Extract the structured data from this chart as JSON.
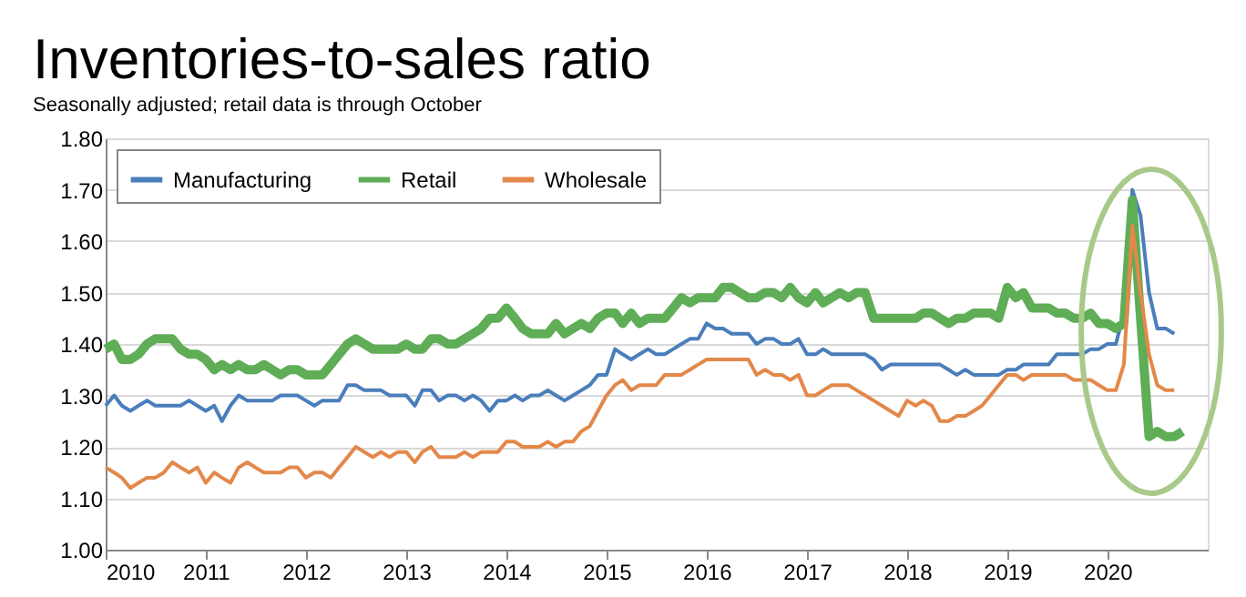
{
  "chart_data": {
    "type": "line",
    "title": "Inventories-to-sales ratio",
    "subtitle": "Seasonally adjusted; retail data is through October",
    "x": [
      "2010-01",
      "2010-02",
      "2010-03",
      "2010-04",
      "2010-05",
      "2010-06",
      "2010-07",
      "2010-08",
      "2010-09",
      "2010-10",
      "2010-11",
      "2010-12",
      "2011-01",
      "2011-02",
      "2011-03",
      "2011-04",
      "2011-05",
      "2011-06",
      "2011-07",
      "2011-08",
      "2011-09",
      "2011-10",
      "2011-11",
      "2011-12",
      "2012-01",
      "2012-02",
      "2012-03",
      "2012-04",
      "2012-05",
      "2012-06",
      "2012-07",
      "2012-08",
      "2012-09",
      "2012-10",
      "2012-11",
      "2012-12",
      "2013-01",
      "2013-02",
      "2013-03",
      "2013-04",
      "2013-05",
      "2013-06",
      "2013-07",
      "2013-08",
      "2013-09",
      "2013-10",
      "2013-11",
      "2013-12",
      "2014-01",
      "2014-02",
      "2014-03",
      "2014-04",
      "2014-05",
      "2014-06",
      "2014-07",
      "2014-08",
      "2014-09",
      "2014-10",
      "2014-11",
      "2014-12",
      "2015-01",
      "2015-02",
      "2015-03",
      "2015-04",
      "2015-05",
      "2015-06",
      "2015-07",
      "2015-08",
      "2015-09",
      "2015-10",
      "2015-11",
      "2015-12",
      "2016-01",
      "2016-02",
      "2016-03",
      "2016-04",
      "2016-05",
      "2016-06",
      "2016-07",
      "2016-08",
      "2016-09",
      "2016-10",
      "2016-11",
      "2016-12",
      "2017-01",
      "2017-02",
      "2017-03",
      "2017-04",
      "2017-05",
      "2017-06",
      "2017-07",
      "2017-08",
      "2017-09",
      "2017-10",
      "2017-11",
      "2017-12",
      "2018-01",
      "2018-02",
      "2018-03",
      "2018-04",
      "2018-05",
      "2018-06",
      "2018-07",
      "2018-08",
      "2018-09",
      "2018-10",
      "2018-11",
      "2018-12",
      "2019-01",
      "2019-02",
      "2019-03",
      "2019-04",
      "2019-05",
      "2019-06",
      "2019-07",
      "2019-08",
      "2019-09",
      "2019-10",
      "2019-11",
      "2019-12",
      "2020-01",
      "2020-02",
      "2020-03",
      "2020-04",
      "2020-05",
      "2020-06",
      "2020-07",
      "2020-08",
      "2020-09",
      "2020-10"
    ],
    "series": [
      {
        "name": "Manufacturing",
        "color": "#4a7ebb",
        "values": [
          1.28,
          1.3,
          1.28,
          1.27,
          1.28,
          1.29,
          1.28,
          1.28,
          1.28,
          1.28,
          1.29,
          1.28,
          1.27,
          1.28,
          1.25,
          1.28,
          1.3,
          1.29,
          1.29,
          1.29,
          1.29,
          1.3,
          1.3,
          1.3,
          1.29,
          1.28,
          1.29,
          1.29,
          1.29,
          1.32,
          1.32,
          1.31,
          1.31,
          1.31,
          1.3,
          1.3,
          1.3,
          1.28,
          1.31,
          1.31,
          1.29,
          1.3,
          1.3,
          1.29,
          1.3,
          1.29,
          1.27,
          1.29,
          1.29,
          1.3,
          1.29,
          1.3,
          1.3,
          1.31,
          1.3,
          1.29,
          1.3,
          1.31,
          1.32,
          1.34,
          1.34,
          1.39,
          1.38,
          1.37,
          1.38,
          1.39,
          1.38,
          1.38,
          1.39,
          1.4,
          1.41,
          1.41,
          1.44,
          1.43,
          1.43,
          1.42,
          1.42,
          1.42,
          1.4,
          1.41,
          1.41,
          1.4,
          1.4,
          1.41,
          1.38,
          1.38,
          1.39,
          1.38,
          1.38,
          1.38,
          1.38,
          1.38,
          1.37,
          1.35,
          1.36,
          1.36,
          1.36,
          1.36,
          1.36,
          1.36,
          1.36,
          1.35,
          1.34,
          1.35,
          1.34,
          1.34,
          1.34,
          1.34,
          1.35,
          1.35,
          1.36,
          1.36,
          1.36,
          1.36,
          1.38,
          1.38,
          1.38,
          1.38,
          1.39,
          1.39,
          1.4,
          1.4,
          1.46,
          1.7,
          1.65,
          1.5,
          1.43,
          1.43,
          1.42,
          null
        ]
      },
      {
        "name": "Retail",
        "color": "#5fad56",
        "values": [
          1.39,
          1.4,
          1.37,
          1.37,
          1.38,
          1.4,
          1.41,
          1.41,
          1.41,
          1.39,
          1.38,
          1.38,
          1.37,
          1.35,
          1.36,
          1.35,
          1.36,
          1.35,
          1.35,
          1.36,
          1.35,
          1.34,
          1.35,
          1.35,
          1.34,
          1.34,
          1.34,
          1.36,
          1.38,
          1.4,
          1.41,
          1.4,
          1.39,
          1.39,
          1.39,
          1.39,
          1.4,
          1.39,
          1.39,
          1.41,
          1.41,
          1.4,
          1.4,
          1.41,
          1.42,
          1.43,
          1.45,
          1.45,
          1.47,
          1.45,
          1.43,
          1.42,
          1.42,
          1.42,
          1.44,
          1.42,
          1.43,
          1.44,
          1.43,
          1.45,
          1.46,
          1.46,
          1.44,
          1.46,
          1.44,
          1.45,
          1.45,
          1.45,
          1.47,
          1.49,
          1.48,
          1.49,
          1.49,
          1.49,
          1.51,
          1.51,
          1.5,
          1.49,
          1.49,
          1.5,
          1.5,
          1.49,
          1.51,
          1.49,
          1.48,
          1.5,
          1.48,
          1.49,
          1.5,
          1.49,
          1.5,
          1.5,
          1.45,
          1.45,
          1.45,
          1.45,
          1.45,
          1.45,
          1.46,
          1.46,
          1.45,
          1.44,
          1.45,
          1.45,
          1.46,
          1.46,
          1.46,
          1.45,
          1.51,
          1.49,
          1.5,
          1.47,
          1.47,
          1.47,
          1.46,
          1.46,
          1.45,
          1.45,
          1.46,
          1.44,
          1.44,
          1.43,
          1.44,
          1.68,
          1.45,
          1.22,
          1.23,
          1.22,
          1.22,
          1.23
        ]
      },
      {
        "name": "Wholesale",
        "color": "#e3884a",
        "values": [
          1.16,
          1.15,
          1.14,
          1.12,
          1.13,
          1.14,
          1.14,
          1.15,
          1.17,
          1.16,
          1.15,
          1.16,
          1.13,
          1.15,
          1.14,
          1.13,
          1.16,
          1.17,
          1.16,
          1.15,
          1.15,
          1.15,
          1.16,
          1.16,
          1.14,
          1.15,
          1.15,
          1.14,
          1.16,
          1.18,
          1.2,
          1.19,
          1.18,
          1.19,
          1.18,
          1.19,
          1.19,
          1.17,
          1.19,
          1.2,
          1.18,
          1.18,
          1.18,
          1.19,
          1.18,
          1.19,
          1.19,
          1.19,
          1.21,
          1.21,
          1.2,
          1.2,
          1.2,
          1.21,
          1.2,
          1.21,
          1.21,
          1.23,
          1.24,
          1.27,
          1.3,
          1.32,
          1.33,
          1.31,
          1.32,
          1.32,
          1.32,
          1.34,
          1.34,
          1.34,
          1.35,
          1.36,
          1.37,
          1.37,
          1.37,
          1.37,
          1.37,
          1.37,
          1.34,
          1.35,
          1.34,
          1.34,
          1.33,
          1.34,
          1.3,
          1.3,
          1.31,
          1.32,
          1.32,
          1.32,
          1.31,
          1.3,
          1.29,
          1.28,
          1.27,
          1.26,
          1.29,
          1.28,
          1.29,
          1.28,
          1.25,
          1.25,
          1.26,
          1.26,
          1.27,
          1.28,
          1.3,
          1.32,
          1.34,
          1.34,
          1.33,
          1.34,
          1.34,
          1.34,
          1.34,
          1.34,
          1.33,
          1.33,
          1.33,
          1.32,
          1.31,
          1.31,
          1.36,
          1.63,
          1.5,
          1.38,
          1.32,
          1.31,
          1.31,
          null
        ]
      }
    ],
    "xlim": [
      "2010-01",
      "2021-01"
    ],
    "xticks": [
      "2010",
      "2011",
      "2012",
      "2013",
      "2014",
      "2015",
      "2016",
      "2017",
      "2018",
      "2019",
      "2020"
    ],
    "ylim": [
      1.0,
      1.8
    ],
    "yticks": [
      {
        "value": 1.0,
        "label": "1.00"
      },
      {
        "value": 1.1,
        "label": "1.10"
      },
      {
        "value": 1.2,
        "label": "1.20"
      },
      {
        "value": 1.3,
        "label": "1.30"
      },
      {
        "value": 1.4,
        "label": "1.40"
      },
      {
        "value": 1.5,
        "label": "1.50"
      },
      {
        "value": 1.6,
        "label": "1.60"
      },
      {
        "value": 1.7,
        "label": "1.70"
      },
      {
        "value": 1.8,
        "label": "1.80"
      }
    ],
    "grid": "y",
    "legend": "top left",
    "marker": "none",
    "line_style": "solid"
  }
}
